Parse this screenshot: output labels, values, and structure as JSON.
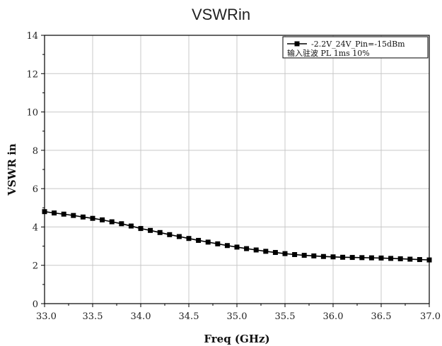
{
  "chart_data": {
    "type": "line",
    "title": "VSWRin",
    "xlabel": "Freq (GHz)",
    "ylabel": "VSWR in",
    "xlim": [
      33.0,
      37.0
    ],
    "ylim": [
      0,
      14
    ],
    "xticks": [
      "33.0",
      "33.5",
      "34.0",
      "34.5",
      "35.0",
      "35.5",
      "36.0",
      "36.5",
      "37.0"
    ],
    "yticks": [
      "0",
      "2",
      "4",
      "6",
      "8",
      "10",
      "12",
      "14"
    ],
    "grid": true,
    "legend_position": "top-right",
    "series": [
      {
        "name": "-2.2V_24V_Pin=-15dBm",
        "name_line2": "输入驻波 PL 1ms 10%",
        "color": "#000000",
        "marker": "square",
        "x": [
          33.0,
          33.1,
          33.2,
          33.3,
          33.4,
          33.5,
          33.6,
          33.7,
          33.8,
          33.9,
          34.0,
          34.1,
          34.2,
          34.3,
          34.4,
          34.5,
          34.6,
          34.7,
          34.8,
          34.9,
          35.0,
          35.1,
          35.2,
          35.3,
          35.4,
          35.5,
          35.6,
          35.7,
          35.8,
          35.9,
          36.0,
          36.1,
          36.2,
          36.3,
          36.4,
          36.5,
          36.6,
          36.7,
          36.8,
          36.9,
          37.0
        ],
        "y": [
          4.8,
          4.73,
          4.67,
          4.6,
          4.52,
          4.45,
          4.37,
          4.27,
          4.17,
          4.05,
          3.92,
          3.82,
          3.71,
          3.6,
          3.5,
          3.4,
          3.3,
          3.21,
          3.12,
          3.03,
          2.95,
          2.87,
          2.8,
          2.73,
          2.67,
          2.61,
          2.56,
          2.52,
          2.49,
          2.46,
          2.44,
          2.42,
          2.41,
          2.4,
          2.39,
          2.38,
          2.36,
          2.34,
          2.32,
          2.3,
          2.28
        ]
      }
    ]
  }
}
